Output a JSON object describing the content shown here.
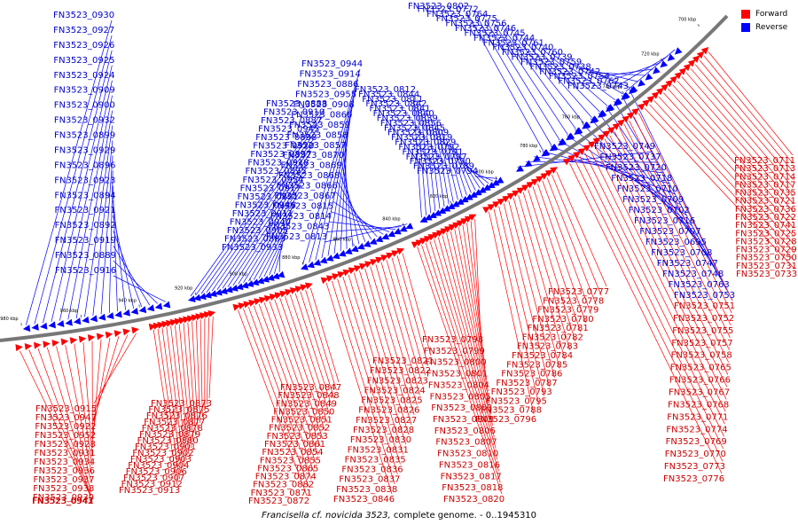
{
  "legend": {
    "forward_label": "Forward",
    "reverse_label": "Reverse",
    "forward_color": "#ff0000",
    "reverse_color": "#0000ff"
  },
  "caption": {
    "organism": "Francisella cf. novicida 3523,",
    "rest": "complete genome. - 0..1945310"
  },
  "ticks": [
    "700 kbp",
    "720 kbp",
    "740 kbp",
    "760 kbp",
    "780 kbp",
    "800 kbp",
    "820 kbp",
    "840 kbp",
    "860 kbp",
    "880 kbp",
    "900 kbp",
    "920 kbp",
    "940 kbp",
    "960 kbp",
    "980 kbp"
  ],
  "reverse_genes": [
    "FN3523_0930",
    "FN3523_0927",
    "FN3523_0926",
    "FN3523_0925",
    "FN3523_0924",
    "FN3523_0909",
    "FN3523_0900",
    "FN3523_0932",
    "FN3523_0899",
    "FN3523_0929",
    "FN3523_0896",
    "FN3523_0923",
    "FN3523_0894",
    "FN3523_0921",
    "FN3523_0892",
    "FN3523_0919",
    "FN3523_0889",
    "FN3523_0916",
    "FN3523_0888",
    "FN3523_0910",
    "FN3523_0887",
    "FN3523_0945",
    "FN3523_0898",
    "FN3523_0920",
    "FN3523_0897",
    "FN3523_0918",
    "FN3523_0895",
    "FN3523_0954",
    "FN3523_0917",
    "FN3523_0891",
    "FN3523_0946",
    "FN3523_0911",
    "FN3523_0940",
    "FN3523_0905",
    "FN3523_0883",
    "FN3523_0933",
    "FN3523_0944",
    "FN3523_0914",
    "FN3523_0886",
    "FN3523_0955",
    "FN3523_0908",
    "FN3523_0860",
    "FN3523_0859",
    "FN3523_0858",
    "FN3523_0857",
    "FN3523_0870",
    "FN3523_0869",
    "FN3523_0868",
    "FN3523_0866",
    "FN3523_0867",
    "FN3523_0815",
    "FN3523_0814",
    "FN3523_0843",
    "FN3523_0813",
    "FN3523_0812",
    "FN3523_0844",
    "FN3523_0811",
    "FN3523_0842",
    "FN3523_0841",
    "FN3523_0840",
    "FN3523_0839",
    "FN3523_0856",
    "FN3523_0845",
    "FN3523_0809",
    "FN3523_0819",
    "FN3523_0829",
    "FN3523_0792",
    "FN3523_0791",
    "FN3523_0797",
    "FN3523_0790",
    "FN3523_0789",
    "FN3523_0794",
    "FN3523_0802",
    "FN3523_0772",
    "FN3523_0764",
    "FN3523_0775",
    "FN3523_0756",
    "FN3523_0746",
    "FN3523_0745",
    "FN3523_0744",
    "FN3523_0761",
    "FN3523_0740",
    "FN3523_0760",
    "FN3523_0739",
    "FN3523_0759",
    "FN3523_0738",
    "FN3523_0742",
    "FN3523_0754",
    "FN3523_0762",
    "FN3523_0743",
    "FN3523_0749",
    "FN3523_0737",
    "FN3523_0720",
    "FN3523_0718",
    "FN3523_0710",
    "FN3523_0709",
    "FN3523_0702",
    "FN3523_0716",
    "FN3523_0707",
    "FN3523_0695",
    "FN3523_0708",
    "FN3523_0747",
    "FN3523_0748",
    "FN3523_0763",
    "FN3523_0753"
  ],
  "forward_genes": [
    "FN3523_0711",
    "FN3523_0713",
    "FN3523_0714",
    "FN3523_0717",
    "FN3523_0735",
    "FN3523_0721",
    "FN3523_0736",
    "FN3523_0722",
    "FN3523_0741",
    "FN3523_0725",
    "FN3523_0728",
    "FN3523_0729",
    "FN3523_0750",
    "FN3523_0731",
    "FN3523_0733",
    "FN3523_0751",
    "FN3523_0752",
    "FN3523_0755",
    "FN3523_0757",
    "FN3523_0758",
    "FN3523_0765",
    "FN3523_0766",
    "FN3523_0767",
    "FN3523_0768",
    "FN3523_0771",
    "FN3523_0774",
    "FN3523_0769",
    "FN3523_0770",
    "FN3523_0773",
    "FN3523_0776",
    "FN3523_0777",
    "FN3523_0778",
    "FN3523_0779",
    "FN3523_0780",
    "FN3523_0781",
    "FN3523_0782",
    "FN3523_0783",
    "FN3523_0784",
    "FN3523_0785",
    "FN3523_0786",
    "FN3523_0787",
    "FN3523_0793",
    "FN3523_0795",
    "FN3523_0788",
    "FN3523_0796",
    "FN3523_0798",
    "FN3523_0799",
    "FN3523_0800",
    "FN3523_0801",
    "FN3523_0804",
    "FN3523_0805",
    "FN3523_0803",
    "FN3523_0808",
    "FN3523_0806",
    "FN3523_0807",
    "FN3523_0810",
    "FN3523_0816",
    "FN3523_0817",
    "FN3523_0818",
    "FN3523_0820",
    "FN3523_0821",
    "FN3523_0822",
    "FN3523_0823",
    "FN3523_0824",
    "FN3523_0825",
    "FN3523_0826",
    "FN3523_0827",
    "FN3523_0828",
    "FN3523_0830",
    "FN3523_0831",
    "FN3523_0835",
    "FN3523_0836",
    "FN3523_0837",
    "FN3523_0838",
    "FN3523_0846",
    "FN3523_0847",
    "FN3523_0848",
    "FN3523_0849",
    "FN3523_0850",
    "FN3523_0851",
    "FN3523_0852",
    "FN3523_0853",
    "FN3523_0861",
    "FN3523_0854",
    "FN3523_0855",
    "FN3523_0865",
    "FN3523_0874",
    "FN3523_0882",
    "FN3523_0871",
    "FN3523_0872",
    "FN3523_0873",
    "FN3523_0875",
    "FN3523_0876",
    "FN3523_0877",
    "FN3523_0878",
    "FN3523_0879",
    "FN3523_0880",
    "FN3523_0901",
    "FN3523_0902",
    "FN3523_0903",
    "FN3523_0904",
    "FN3523_0906",
    "FN3523_0907",
    "FN3523_0912",
    "FN3523_0913",
    "FN3523_0915",
    "FN3523_0947",
    "FN3523_0922",
    "FN3523_0952",
    "FN3523_0928",
    "FN3523_0931",
    "FN3523_0934",
    "FN3523_0936",
    "FN3523_0937",
    "FN3523_0938",
    "FN3523_0939",
    "FN3523_0941",
    "FN3523_0942",
    "FN3523_0943"
  ]
}
